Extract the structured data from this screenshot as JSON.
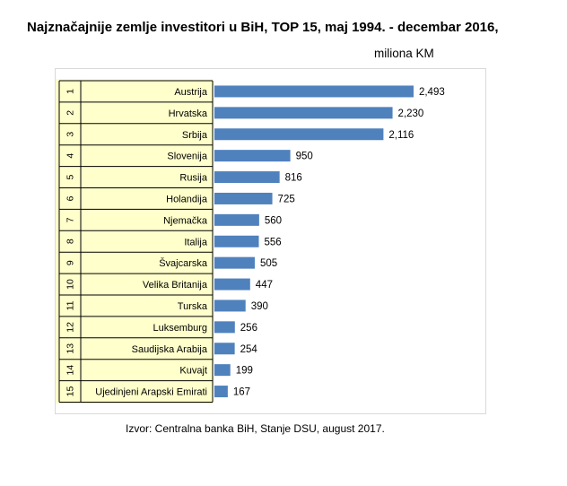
{
  "title": "Najznačajnije zemlje investitori u BiH, TOP 15, maj 1994. - decembar 2016,",
  "unit_label": "miliona KM",
  "source": "Izvor: Centralna  banka BiH, Stanje DSU, august 2017.",
  "colors": {
    "bar": "#4f81bd",
    "frame_border": "#d9d9d9",
    "table_lines": "#000000",
    "highlight": "#ffffcc"
  },
  "chart_data": {
    "type": "bar",
    "orientation": "horizontal",
    "title": "Najznačajnije zemlje investitori u BiH, TOP 15, maj 1994. - decembar 2016,",
    "ylabel": "miliona KM",
    "ranks": [
      "1",
      "2",
      "3",
      "4",
      "5",
      "6",
      "7",
      "8",
      "9",
      "10",
      "11",
      "12",
      "13",
      "14",
      "15"
    ],
    "categories": [
      "Austrija",
      "Hrvatska",
      "Srbija",
      "Slovenija",
      "Rusija",
      "Holandija",
      "Njemačka",
      "Italija",
      "Švajcarska",
      "Velika Britanija",
      "Turska",
      "Luksemburg",
      "Saudijska Arabija",
      "Kuvajt",
      "Ujedinjeni Arapski Emirati"
    ],
    "values": [
      2493,
      2230,
      2116,
      950,
      816,
      725,
      560,
      556,
      505,
      447,
      390,
      256,
      254,
      199,
      167
    ],
    "value_labels": [
      "2,493",
      "2,230",
      "2,116",
      "950",
      "816",
      "725",
      "560",
      "556",
      "505",
      "447",
      "390",
      "256",
      "254",
      "199",
      "167"
    ],
    "xlim": [
      0,
      2600
    ],
    "grid": false,
    "legend": "none"
  }
}
